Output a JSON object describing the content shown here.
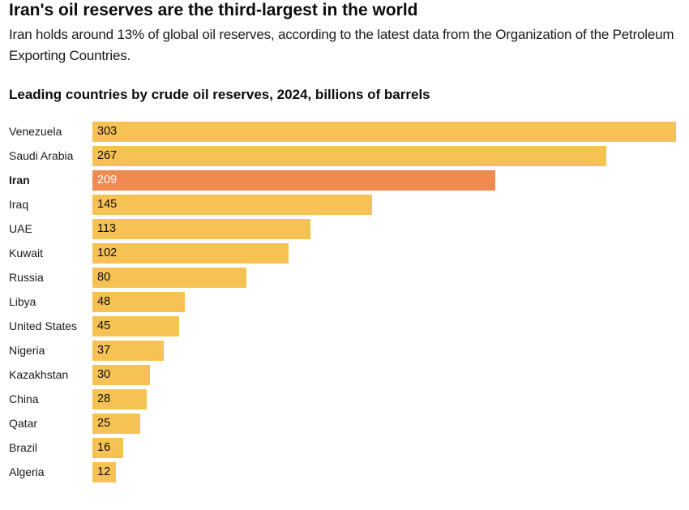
{
  "title": "Iran's oil reserves are the third-largest in the world",
  "subtitle": "Iran holds around 13% of global oil reserves, according to the latest data from the Organization of the Petroleum Exporting Countries.",
  "chart_data": {
    "type": "bar",
    "orientation": "horizontal",
    "title": "Leading countries by crude oil reserves, 2024, billions of barrels",
    "categories": [
      "Venezuela",
      "Saudi Arabia",
      "Iran",
      "Iraq",
      "UAE",
      "Kuwait",
      "Russia",
      "Libya",
      "United States",
      "Nigeria",
      "Kazakhstan",
      "China",
      "Qatar",
      "Brazil",
      "Algeria"
    ],
    "values": [
      303,
      267,
      209,
      145,
      113,
      102,
      80,
      48,
      45,
      37,
      30,
      28,
      25,
      16,
      12
    ],
    "highlight": "Iran",
    "xlim": [
      0,
      303
    ],
    "colors": {
      "default": "#f7c254",
      "highlight": "#f08a50"
    }
  }
}
